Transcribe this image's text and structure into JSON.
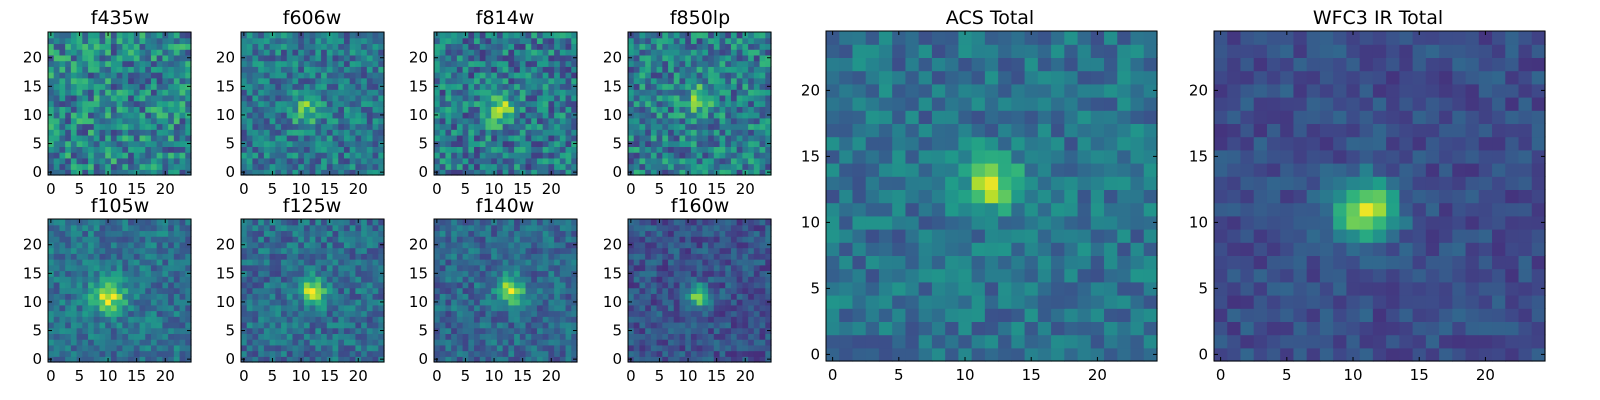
{
  "figure": {
    "panel_titles": [
      "f435w",
      "f606w",
      "f814w",
      "f850lp",
      "f105w",
      "f125w",
      "f140w",
      "f160w",
      "ACS Total",
      "WFC3 IR Total"
    ]
  },
  "colors": {
    "colormap": "viridis",
    "colormap_stops": [
      "#440154",
      "#482878",
      "#3e4989",
      "#31688e",
      "#26828e",
      "#1f9e89",
      "#35b779",
      "#6ece58",
      "#b5de2b",
      "#fde725"
    ],
    "frame": "#000000",
    "background": "#ffffff"
  },
  "chart_data": [
    {
      "type": "heatmap",
      "title": "f435w",
      "grid_size": [
        25,
        25
      ],
      "xlim": [
        -0.5,
        24.5
      ],
      "ylim": [
        -0.5,
        24.5
      ],
      "xticks": [
        0,
        5,
        10,
        15,
        20
      ],
      "yticks": [
        0,
        5,
        10,
        15,
        20
      ],
      "colormap": "viridis",
      "peak": null,
      "noise": 0.26,
      "seed": 11,
      "base": 0.45
    },
    {
      "type": "heatmap",
      "title": "f606w",
      "grid_size": [
        25,
        25
      ],
      "xlim": [
        -0.5,
        24.5
      ],
      "ylim": [
        -0.5,
        24.5
      ],
      "xticks": [
        0,
        5,
        10,
        15,
        20
      ],
      "yticks": [
        0,
        5,
        10,
        15,
        20
      ],
      "colormap": "viridis",
      "peak": [
        11,
        11
      ],
      "peak_amplitude": 0.35,
      "peak_width": 1.8,
      "noise": 0.2,
      "seed": 23,
      "base": 0.4
    },
    {
      "type": "heatmap",
      "title": "f814w",
      "grid_size": [
        25,
        25
      ],
      "xlim": [
        -0.5,
        24.5
      ],
      "ylim": [
        -0.5,
        24.5
      ],
      "xticks": [
        0,
        5,
        10,
        15,
        20
      ],
      "yticks": [
        0,
        5,
        10,
        15,
        20
      ],
      "colormap": "viridis",
      "peak": [
        11,
        11
      ],
      "peak_amplitude": 0.45,
      "peak_width": 1.8,
      "noise": 0.24,
      "seed": 37,
      "base": 0.4
    },
    {
      "type": "heatmap",
      "title": "f850lp",
      "grid_size": [
        25,
        25
      ],
      "xlim": [
        -0.5,
        24.5
      ],
      "ylim": [
        -0.5,
        24.5
      ],
      "xticks": [
        0,
        5,
        10,
        15,
        20
      ],
      "yticks": [
        0,
        5,
        10,
        15,
        20
      ],
      "colormap": "viridis",
      "peak": [
        12,
        13
      ],
      "peak_amplitude": 0.3,
      "peak_width": 2.0,
      "noise": 0.24,
      "seed": 41,
      "base": 0.42
    },
    {
      "type": "heatmap",
      "title": "f105w",
      "grid_size": [
        25,
        25
      ],
      "xlim": [
        -0.5,
        24.5
      ],
      "ylim": [
        -0.5,
        24.5
      ],
      "xticks": [
        0,
        5,
        10,
        15,
        20
      ],
      "yticks": [
        0,
        5,
        10,
        15,
        20
      ],
      "colormap": "viridis",
      "peak": [
        10,
        11
      ],
      "peak_amplitude": 0.55,
      "peak_width": 2.0,
      "noise": 0.15,
      "seed": 53,
      "base": 0.38
    },
    {
      "type": "heatmap",
      "title": "f125w",
      "grid_size": [
        25,
        25
      ],
      "xlim": [
        -0.5,
        24.5
      ],
      "ylim": [
        -0.5,
        24.5
      ],
      "xticks": [
        0,
        5,
        10,
        15,
        20
      ],
      "yticks": [
        0,
        5,
        10,
        15,
        20
      ],
      "colormap": "viridis",
      "peak": [
        12,
        12
      ],
      "peak_amplitude": 0.55,
      "peak_width": 1.6,
      "noise": 0.16,
      "seed": 67,
      "base": 0.36
    },
    {
      "type": "heatmap",
      "title": "f140w",
      "grid_size": [
        25,
        25
      ],
      "xlim": [
        -0.5,
        24.5
      ],
      "ylim": [
        -0.5,
        24.5
      ],
      "xticks": [
        0,
        5,
        10,
        15,
        20
      ],
      "yticks": [
        0,
        5,
        10,
        15,
        20
      ],
      "colormap": "viridis",
      "peak": [
        13,
        12
      ],
      "peak_amplitude": 0.55,
      "peak_width": 1.7,
      "noise": 0.15,
      "seed": 79,
      "base": 0.34
    },
    {
      "type": "heatmap",
      "title": "f160w",
      "grid_size": [
        25,
        25
      ],
      "xlim": [
        -0.5,
        24.5
      ],
      "ylim": [
        -0.5,
        24.5
      ],
      "xticks": [
        0,
        5,
        10,
        15,
        20
      ],
      "yticks": [
        0,
        5,
        10,
        15,
        20
      ],
      "colormap": "viridis",
      "peak": [
        12,
        11
      ],
      "peak_amplitude": 0.65,
      "peak_width": 1.3,
      "noise": 0.13,
      "seed": 83,
      "base": 0.26
    },
    {
      "type": "heatmap",
      "title": "ACS Total",
      "grid_size": [
        25,
        25
      ],
      "xlim": [
        -0.5,
        24.5
      ],
      "ylim": [
        -0.5,
        24.5
      ],
      "xticks": [
        0,
        5,
        10,
        15,
        20
      ],
      "yticks": [
        0,
        5,
        10,
        15,
        20
      ],
      "colormap": "viridis",
      "peak": [
        12,
        13
      ],
      "peak_amplitude": 0.5,
      "peak_width": 1.5,
      "noise": 0.14,
      "seed": 97,
      "base": 0.38
    },
    {
      "type": "heatmap",
      "title": "WFC3 IR Total",
      "grid_size": [
        25,
        25
      ],
      "xlim": [
        -0.5,
        24.5
      ],
      "ylim": [
        -0.5,
        24.5
      ],
      "xticks": [
        0,
        5,
        10,
        15,
        20
      ],
      "yticks": [
        0,
        5,
        10,
        15,
        20
      ],
      "colormap": "viridis",
      "peak": [
        11,
        11
      ],
      "peak_amplitude": 0.7,
      "peak_width": 1.6,
      "noise": 0.09,
      "seed": 101,
      "base": 0.24
    }
  ]
}
